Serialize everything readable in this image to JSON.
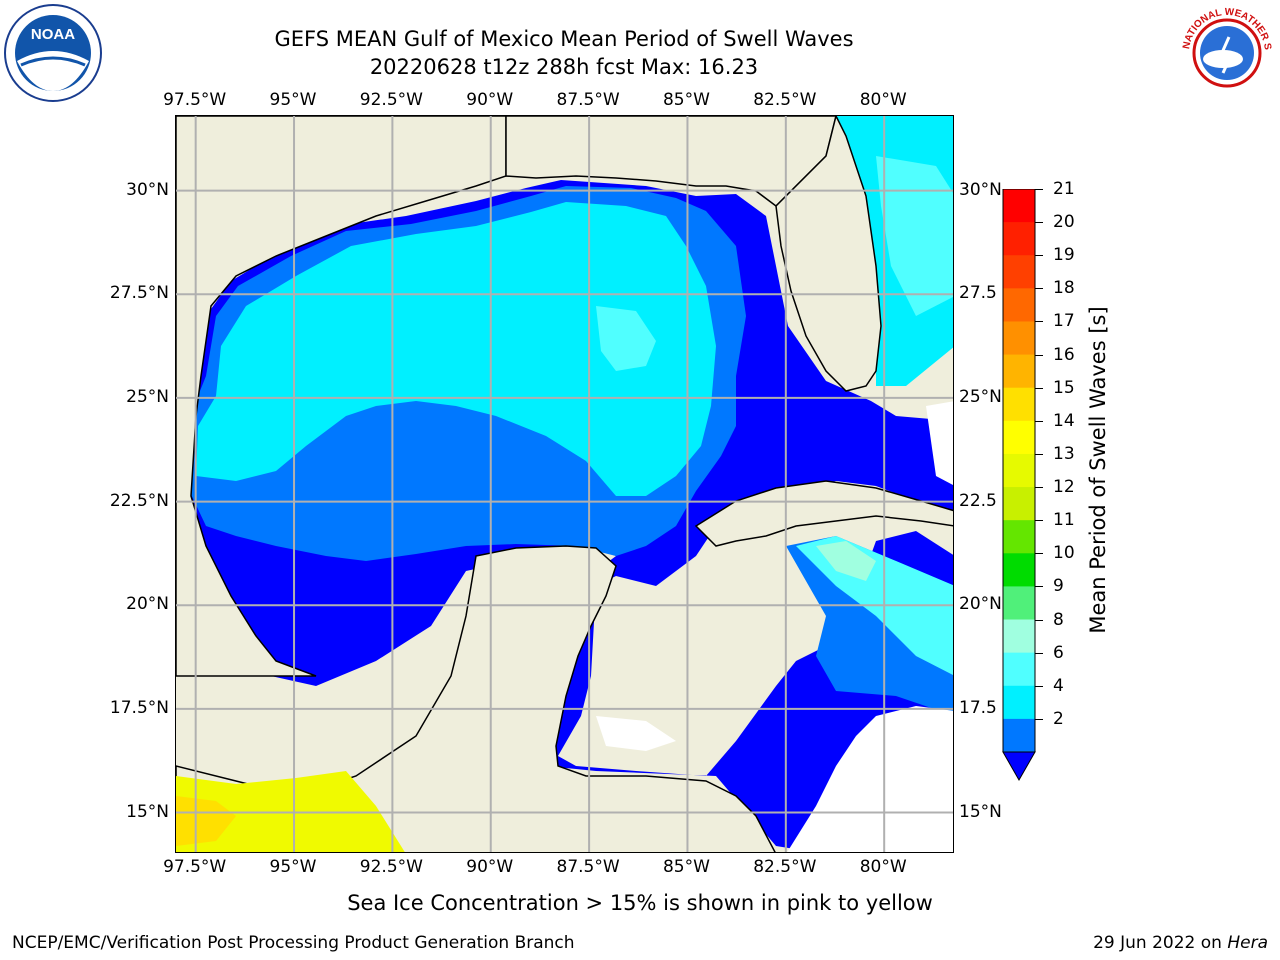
{
  "title": {
    "line1": "GEFS MEAN Gulf of Mexico Mean Period of Swell Waves",
    "line2": "20220628 t12z 288h fcst   Max: 16.23"
  },
  "map": {
    "lon_ticks": [
      "97.5°W",
      "95°W",
      "92.5°W",
      "90°W",
      "87.5°W",
      "85°W",
      "82.5°W",
      "80°W"
    ],
    "lon_values": [
      -97.5,
      -95,
      -92.5,
      -90,
      -87.5,
      -85,
      -82.5,
      -80
    ],
    "lat_ticks_left": [
      "30°N",
      "27.5°N",
      "25°N",
      "22.5°N",
      "20°N",
      "17.5°N",
      "15°N"
    ],
    "lat_ticks_right": [
      "30°N",
      "27.5",
      "25°N",
      "22.5",
      "20°N",
      "17.5",
      "15°N"
    ],
    "lat_values": [
      30,
      27.5,
      25,
      22.5,
      20,
      17.5,
      15
    ],
    "lon_range": [
      -98,
      -78.2
    ],
    "lat_range": [
      14,
      31.8
    ],
    "land_color": "#efeedc",
    "grid_color": "#b0b0b0"
  },
  "colorbar": {
    "title": "Mean Period of Swell Waves [s]",
    "labels": [
      "21",
      "20",
      "19",
      "18",
      "17",
      "16",
      "15",
      "14",
      "13",
      "12",
      "11",
      "10",
      "9",
      "8",
      "6",
      "4",
      "2"
    ],
    "colors": [
      "#ff0000",
      "#ff2000",
      "#ff4000",
      "#ff6800",
      "#ff9000",
      "#ffb400",
      "#ffe000",
      "#ffff00",
      "#e6fa00",
      "#c8f000",
      "#64e600",
      "#00dc00",
      "#50f07a",
      "#a0ffe0",
      "#50ffff",
      "#00f0ff",
      "#0078ff"
    ],
    "underflow_color": "#0000ff"
  },
  "footer": {
    "note": "Sea Ice Concentration > 15% is shown in pink to yellow",
    "left": "NCEP/EMC/Verification Post Processing Product Generation Branch",
    "right_date": "29 Jun 2022 on ",
    "right_host": "Hera"
  },
  "logos": {
    "noaa": "NOAA",
    "nws_ring": "NATIONAL WEATHER SERVICE"
  }
}
